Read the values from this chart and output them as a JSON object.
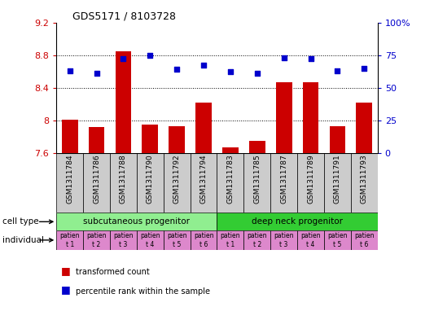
{
  "title": "GDS5171 / 8103728",
  "samples": [
    "GSM1311784",
    "GSM1311786",
    "GSM1311788",
    "GSM1311790",
    "GSM1311792",
    "GSM1311794",
    "GSM1311783",
    "GSM1311785",
    "GSM1311787",
    "GSM1311789",
    "GSM1311791",
    "GSM1311793"
  ],
  "bar_values": [
    8.01,
    7.92,
    8.85,
    7.95,
    7.93,
    8.22,
    7.67,
    7.75,
    8.47,
    8.47,
    7.93,
    8.22
  ],
  "dot_values": [
    63,
    61,
    72,
    75,
    64,
    67,
    62,
    61,
    73,
    72,
    63,
    65
  ],
  "ylim_left": [
    7.6,
    9.2
  ],
  "ylim_right": [
    0,
    100
  ],
  "yticks_left": [
    7.6,
    8.0,
    8.4,
    8.8,
    9.2
  ],
  "ytick_labels_left": [
    "7.6",
    "8",
    "8.4",
    "8.8",
    "9.2"
  ],
  "yticks_right": [
    0,
    25,
    50,
    75,
    100
  ],
  "ytick_labels_right": [
    "0",
    "25",
    "50",
    "75",
    "100%"
  ],
  "bar_color": "#cc0000",
  "dot_color": "#0000cc",
  "cell_type_light_green": "#90ee90",
  "cell_type_dark_green": "#33cc33",
  "individual_color": "#dd88cc",
  "sample_box_color": "#cccccc",
  "cell_types": [
    "subcutaneous progenitor",
    "deep neck progenitor"
  ],
  "individuals": [
    "t 1",
    "t 2",
    "t 3",
    "t 4",
    "t 5",
    "t 6",
    "t 1",
    "t 2",
    "t 3",
    "t 4",
    "t 5",
    "t 6"
  ],
  "patient_label": "patien",
  "bar_baseline": 7.6,
  "grid_dotted_at": [
    8.0,
    8.4,
    8.8
  ],
  "legend_red_label": "transformed count",
  "legend_blue_label": "percentile rank within the sample",
  "cell_type_label": "cell type",
  "individual_label": "individual",
  "figsize": [
    5.33,
    3.93
  ],
  "dpi": 100
}
